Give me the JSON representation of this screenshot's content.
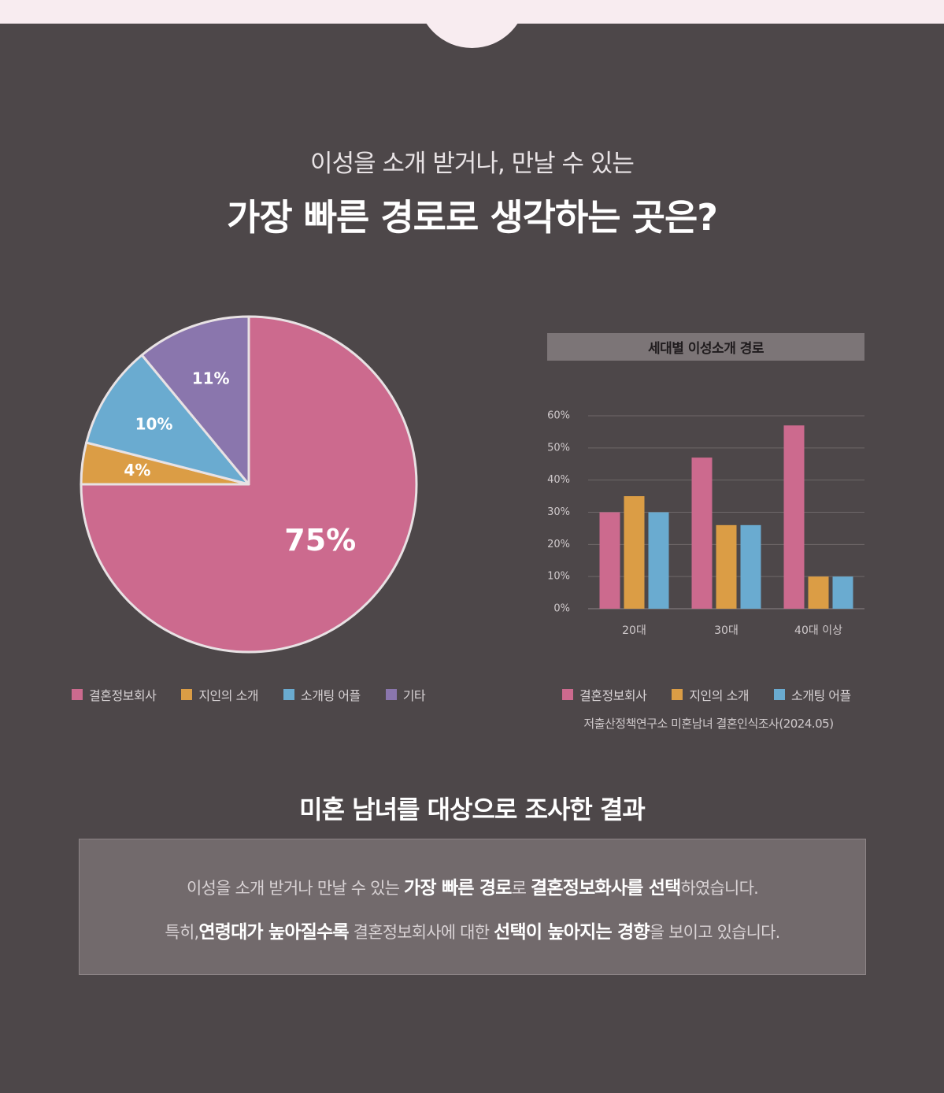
{
  "header": {
    "subtitle": "이성을 소개 받거나, 만날 수 있는",
    "title": "가장 빠른 경로로 생각하는 곳은?"
  },
  "colors": {
    "pink": "#cc6a8e",
    "orange": "#db9d45",
    "blue": "#6aabd0",
    "purple": "#8a76ad",
    "background": "#4d4749"
  },
  "chart_data": [
    {
      "type": "pie",
      "slices": [
        {
          "label": "결혼정보회사",
          "value": 75,
          "display": "75%",
          "color": "#cc6a8e"
        },
        {
          "label": "지인의 소개",
          "value": 4,
          "display": "4%",
          "color": "#db9d45"
        },
        {
          "label": "소개팅 어플",
          "value": 10,
          "display": "10%",
          "color": "#6aabd0"
        },
        {
          "label": "기타",
          "value": 11,
          "display": "11%",
          "color": "#8a76ad"
        }
      ],
      "legend_position": "bottom"
    },
    {
      "type": "bar",
      "title": "세대별 이성소개 경로",
      "categories": [
        "20대",
        "30대",
        "40대 이상"
      ],
      "series": [
        {
          "name": "결혼정보회사",
          "color": "#cc6a8e",
          "values": [
            30,
            47,
            57
          ]
        },
        {
          "name": "지인의 소개",
          "color": "#db9d45",
          "values": [
            35,
            26,
            10
          ]
        },
        {
          "name": "소개팅 어플",
          "color": "#6aabd0",
          "values": [
            30,
            26,
            10
          ]
        }
      ],
      "y_ticks": [
        "0%",
        "10%",
        "20%",
        "30%",
        "40%",
        "50%",
        "60%"
      ],
      "ylim": [
        0,
        60
      ],
      "grid": true,
      "legend_position": "bottom",
      "source": "저출산정책연구소 미혼남녀 결혼인식조사(2024.05)"
    }
  ],
  "result": {
    "title": "미혼 남녀를 대상으로 조사한 결과",
    "line1": [
      {
        "text": "이성을 소개 받거나 만날 수 있는 ",
        "em": false
      },
      {
        "text": "가장 빠른 경로",
        "em": true
      },
      {
        "text": "로 ",
        "em": false
      },
      {
        "text": "결혼정보화사를 선택",
        "em": true
      },
      {
        "text": "하였습니다.",
        "em": false
      }
    ],
    "line2": [
      {
        "text": "특히,",
        "em": false
      },
      {
        "text": "연령대가 높아질수록",
        "em": true
      },
      {
        "text": " 결혼정보회사에 대한 ",
        "em": false
      },
      {
        "text": "선택이 높아지는 경향",
        "em": true
      },
      {
        "text": "을 보이고 있습니다.",
        "em": false
      }
    ]
  }
}
